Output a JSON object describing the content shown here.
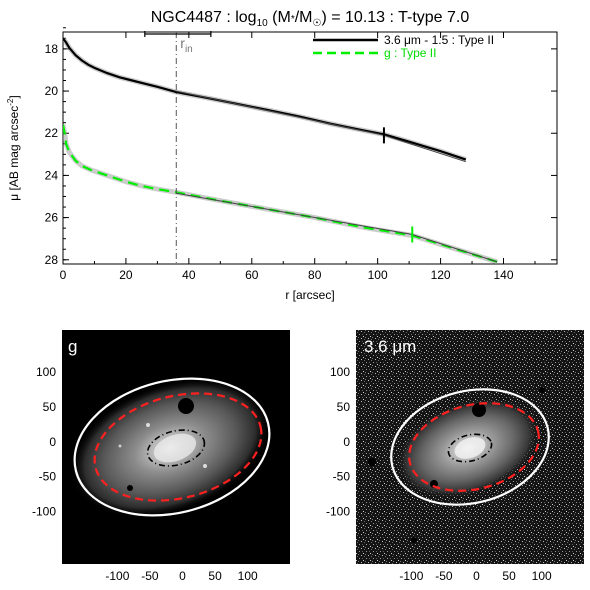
{
  "chart_data": [
    {
      "type": "line",
      "title": "NGC4487 : log",
      "title_sub": "10",
      "title_mid": " (M",
      "title_star": "*",
      "title_mid2": "/M",
      "title_sun": "☉",
      "title_tail": ") = 10.13 : T-type 7.0",
      "xlabel": "r [arcsec]",
      "ylabel": "μ [AB mag arcsec",
      "ylabel_sup": "-2",
      "ylabel_tail": "]",
      "xlim": [
        0,
        157
      ],
      "ylim": [
        28.2,
        17.2
      ],
      "xticks": [
        "0",
        "20",
        "40",
        "60",
        "80",
        "100",
        "120",
        "140"
      ],
      "yticks": [
        "18",
        "20",
        "22",
        "24",
        "26",
        "28"
      ],
      "r_in_label": "r",
      "r_in_sub": "in",
      "r_in": 36,
      "r_in_err": [
        26,
        47
      ],
      "legend": [
        {
          "label": "3.6 μm - 1.5 : Type II",
          "color": "#000000",
          "dash": "solid"
        },
        {
          "label": "g : Type II",
          "color": "#00ee00",
          "dash": "dashed"
        }
      ],
      "series": [
        {
          "name": "3.6 μm - 1.5 : Type II",
          "color": "#000000",
          "x": [
            0,
            1,
            2,
            4,
            6,
            8,
            10,
            14,
            18,
            22,
            26,
            30,
            36,
            45,
            55,
            65,
            75,
            85,
            95,
            102,
            110,
            120,
            128
          ],
          "y": [
            17.5,
            17.7,
            17.95,
            18.3,
            18.55,
            18.75,
            18.9,
            19.15,
            19.35,
            19.5,
            19.65,
            19.8,
            20.05,
            20.3,
            20.6,
            20.9,
            21.2,
            21.55,
            21.85,
            22.05,
            22.4,
            22.85,
            23.25
          ],
          "fit": {
            "x": [
              36,
              102,
              128
            ],
            "y": [
              20.0,
              22.1,
              23.35
            ]
          },
          "break": 102
        },
        {
          "name": "g : Type II",
          "color": "#00ee00",
          "x": [
            0,
            0.5,
            1,
            2,
            4,
            6,
            9,
            12,
            16,
            20,
            25,
            30,
            36,
            50,
            65,
            80,
            95,
            111,
            125,
            138
          ],
          "y": [
            21.6,
            22.0,
            22.5,
            22.9,
            23.3,
            23.55,
            23.75,
            23.9,
            24.1,
            24.3,
            24.5,
            24.65,
            24.8,
            25.2,
            25.6,
            26.0,
            26.45,
            26.85,
            27.5,
            28.1
          ],
          "fit": {
            "x": [
              36,
              111,
              138
            ],
            "y": [
              24.85,
              26.8,
              28.1
            ]
          },
          "break": 111
        }
      ]
    },
    {
      "type": "image",
      "panel_label": "g",
      "background": "#000000",
      "xticks": [
        "-100",
        "-50",
        "0",
        "50",
        "100"
      ],
      "yticks": [
        "100",
        "50",
        "0",
        "-50",
        "-100"
      ],
      "xlim": [
        -185,
        165
      ],
      "ylim": [
        -175,
        160
      ],
      "ellipse_outer_color": "#ffffff",
      "ellipse_break_color": "#ff2020",
      "ellipse_inner_color": "#000000"
    },
    {
      "type": "image",
      "panel_label": "3.6 μm",
      "background": "#1a1a1a",
      "xticks": [
        "-100",
        "-50",
        "0",
        "50",
        "100"
      ],
      "yticks": [
        "100",
        "50",
        "0",
        "-50",
        "-100"
      ],
      "xlim": [
        -185,
        165
      ],
      "ylim": [
        -175,
        160
      ],
      "ellipse_outer_color": "#ffffff",
      "ellipse_break_color": "#ff2020",
      "ellipse_inner_color": "#000000"
    }
  ]
}
